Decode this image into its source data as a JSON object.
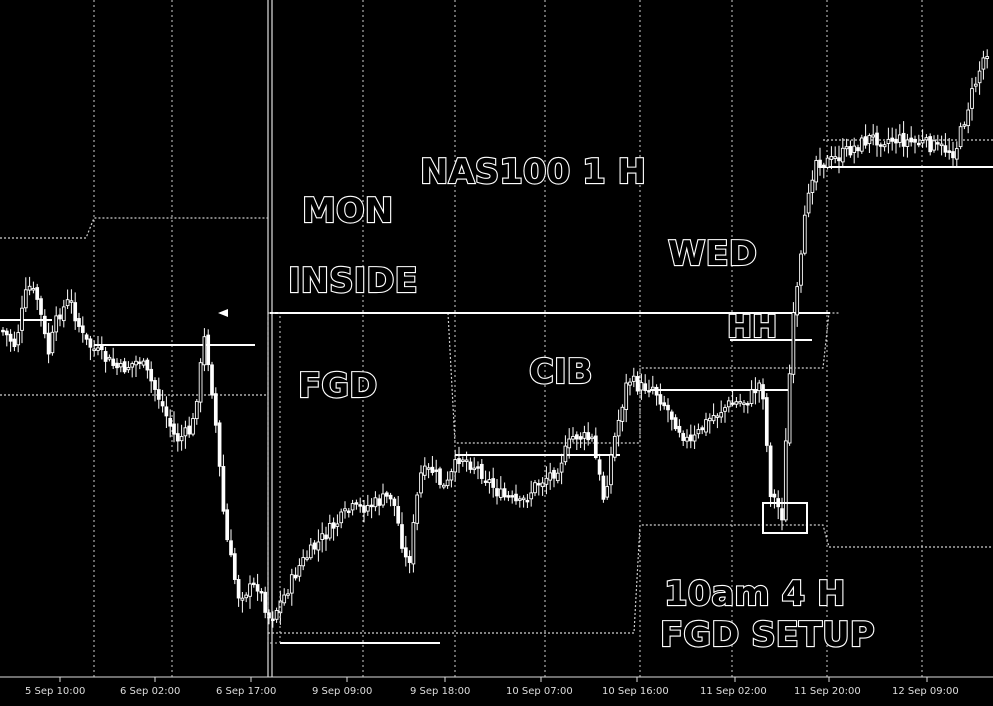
{
  "colors": {
    "background": "#000000",
    "candle": "#ffffff",
    "line": "#ffffff",
    "grid": "#cfcfcf"
  },
  "chart_data": {
    "type": "candlestick",
    "title": "NAS100 1 H",
    "grid": false,
    "x_ticks": [
      "5 Sep 10:00",
      "6 Sep 02:00",
      "6 Sep 17:00",
      "9 Sep 09:00",
      "9 Sep 18:00",
      "10 Sep 07:00",
      "10 Sep 16:00",
      "11 Sep 02:00",
      "11 Sep 20:00",
      "12 Sep 09:00"
    ],
    "annotations": [
      {
        "id": "mon",
        "text": "MON"
      },
      {
        "id": "inside",
        "text": "INSIDE"
      },
      {
        "id": "fgd",
        "text": "FGD"
      },
      {
        "id": "cib",
        "text": "CIB"
      },
      {
        "id": "wed",
        "text": "WED"
      },
      {
        "id": "hh",
        "text": "HH"
      },
      {
        "id": "tenam",
        "text": "10am  4 H"
      },
      {
        "id": "setup",
        "text": "FGD SETUP"
      }
    ]
  }
}
